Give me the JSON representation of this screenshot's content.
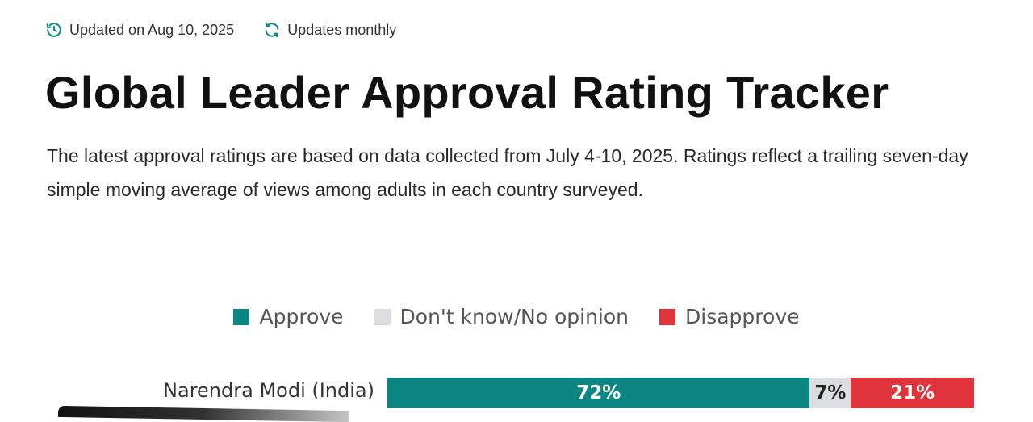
{
  "meta": {
    "updated_label": "Updated on Aug 10, 2025",
    "frequency_label": "Updates monthly",
    "icons": [
      "clock-history-icon",
      "refresh-icon"
    ],
    "icon_color": "#0d8a84"
  },
  "header": {
    "title": "Global Leader Approval Rating Tracker",
    "description": "The latest approval ratings are based on data collected from July 4-10, 2025. Ratings reflect a trailing seven-day simple moving average of views among adults in each country surveyed."
  },
  "legend": {
    "items": [
      {
        "label": "Approve",
        "color": "#0b8682"
      },
      {
        "label": "Don't know/No opinion",
        "color": "#dcdde1"
      },
      {
        "label": "Disapprove",
        "color": "#e0333c"
      }
    ]
  },
  "chart_data": {
    "type": "bar",
    "orientation": "horizontal",
    "stacked": true,
    "normalized": true,
    "categories": [
      "Narendra Modi (India)"
    ],
    "series": [
      {
        "name": "Approve",
        "values": [
          72
        ],
        "color": "#0b8682"
      },
      {
        "name": "Don't know/No opinion",
        "values": [
          7
        ],
        "color": "#dcdde1"
      },
      {
        "name": "Disapprove",
        "values": [
          21
        ],
        "color": "#e0333c"
      }
    ],
    "value_labels": [
      [
        "72%",
        "7%",
        "21%"
      ]
    ],
    "xlim": [
      0,
      100
    ],
    "legend_position": "top-center",
    "grid": false
  }
}
